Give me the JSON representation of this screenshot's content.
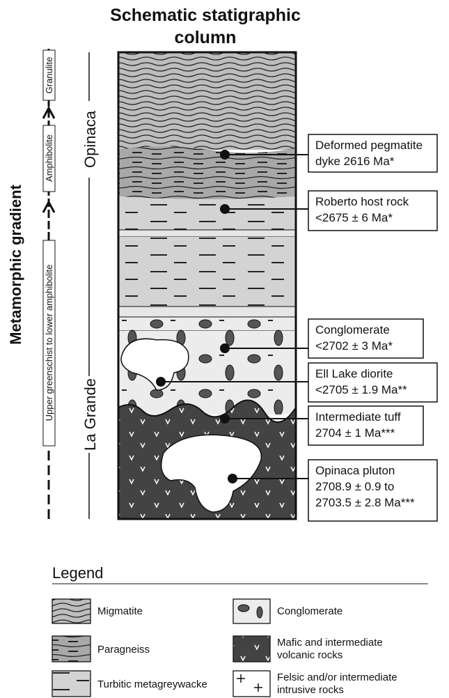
{
  "header": {
    "title": [
      "Schematic statigraphic",
      "column"
    ]
  },
  "gradient": {
    "label": "Metamorphic gradient",
    "grades": [
      "Upper greenschist to lower amphibolite",
      "Amphibolite",
      "Granulite"
    ]
  },
  "groups": [
    "Opinaca",
    "La Grande"
  ],
  "annotations": [
    {
      "lines": [
        "Deformed pegmatite",
        "dyke 2616 Ma*"
      ]
    },
    {
      "lines": [
        "Roberto host rock",
        "<2675 ± 6 Ma*"
      ]
    },
    {
      "lines": [
        "Conglomerate",
        "<2702 ± 3 Ma*"
      ]
    },
    {
      "lines": [
        "Ell Lake diorite",
        " <2705 ± 1.9  Ma**"
      ]
    },
    {
      "lines": [
        "Intermediate tuff",
        "2704 ± 1 Ma***"
      ]
    },
    {
      "lines": [
        "Opinaca pluton",
        "2708.9 ± 0.9 to",
        "2703.5 ± 2.8 Ma***"
      ]
    }
  ],
  "legend": {
    "title": "Legend",
    "items": [
      {
        "lines": [
          "Migmatite"
        ]
      },
      {
        "lines": [
          "Conglomerate"
        ]
      },
      {
        "lines": [
          "Paragneiss"
        ]
      },
      {
        "lines": [
          "Mafic and intermediate",
          "volcanic rocks"
        ]
      },
      {
        "lines": [
          "Turbitic metagreywacke"
        ]
      },
      {
        "lines": [
          "Felsic and/or intermediate",
          "intrusive rocks"
        ]
      }
    ]
  }
}
